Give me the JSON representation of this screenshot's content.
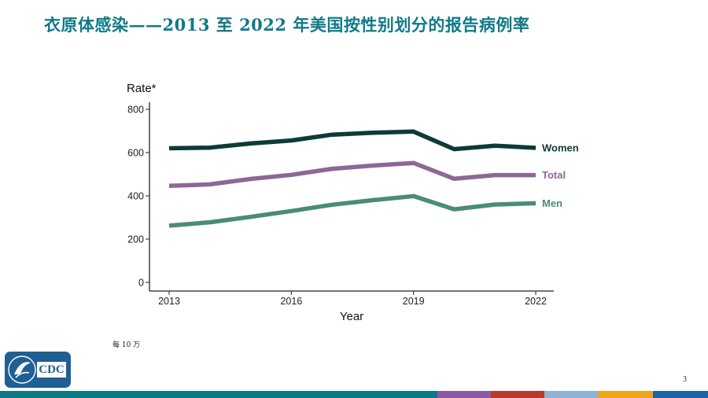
{
  "slide": {
    "title": "衣原体感染——2013 至 2022 年美国按性别划分的报告病例率",
    "footnote": "每 10 万",
    "page_number": "3",
    "logo_text": "CDC"
  },
  "chart_data": {
    "type": "line",
    "title": "",
    "xlabel": "Year",
    "ylabel": "Rate*",
    "xlim": [
      2013,
      2022
    ],
    "ylim": [
      0,
      800
    ],
    "x_ticks": [
      2013,
      2016,
      2019,
      2022
    ],
    "y_ticks": [
      0,
      200,
      400,
      600,
      800
    ],
    "x": [
      2013,
      2014,
      2015,
      2016,
      2017,
      2018,
      2019,
      2020,
      2021,
      2022
    ],
    "series": [
      {
        "name": "Women",
        "color": "#0d3b36",
        "values": [
          620,
          623,
          642,
          656,
          683,
          692,
          697,
          616,
          632,
          622
        ]
      },
      {
        "name": "Total",
        "color": "#8c6896",
        "values": [
          446,
          453,
          478,
          497,
          525,
          540,
          552,
          479,
          496,
          496
        ]
      },
      {
        "name": "Men",
        "color": "#4b8d70",
        "values": [
          262,
          278,
          303,
          330,
          359,
          380,
          399,
          338,
          360,
          366
        ]
      }
    ],
    "legend": "right-end labels"
  },
  "footer_colors": [
    "#0f7a86",
    "#8c5aa5",
    "#bb3a2c",
    "#8db4d6",
    "#f0a41e",
    "#1e63a9"
  ],
  "logo_color": "#1f5f93"
}
